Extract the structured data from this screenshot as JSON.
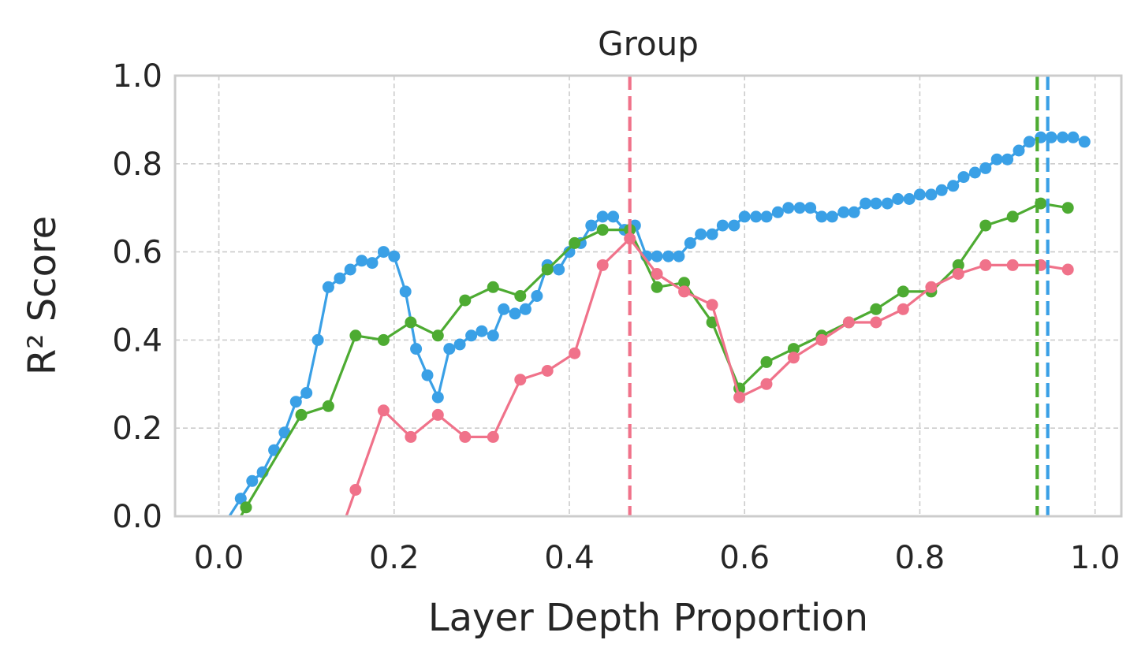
{
  "chart_data": {
    "type": "line",
    "title": "Group",
    "xlabel": "Layer Depth Proportion",
    "ylabel": "R² Score",
    "xlim": [
      -0.05,
      1.03
    ],
    "ylim": [
      0.0,
      1.0
    ],
    "xticks": [
      0.0,
      0.2,
      0.4,
      0.6,
      0.8,
      1.0
    ],
    "xtick_labels": [
      "0.0",
      "0.2",
      "0.4",
      "0.6",
      "0.8",
      "1.0"
    ],
    "yticks": [
      0.0,
      0.2,
      0.4,
      0.6,
      0.8,
      1.0
    ],
    "ytick_labels": [
      "0.0",
      "0.2",
      "0.4",
      "0.6",
      "0.8",
      "1.0"
    ],
    "grid": true,
    "legend": "none",
    "series": [
      {
        "color": "#3aa0e6",
        "x": [
          0.025,
          0.038,
          0.05,
          0.063,
          0.075,
          0.088,
          0.1,
          0.113,
          0.125,
          0.138,
          0.15,
          0.163,
          0.175,
          0.188,
          0.2,
          0.213,
          0.225,
          0.238,
          0.25,
          0.263,
          0.275,
          0.288,
          0.3,
          0.313,
          0.325,
          0.338,
          0.35,
          0.363,
          0.375,
          0.388,
          0.4,
          0.413,
          0.425,
          0.438,
          0.45,
          0.463,
          0.475,
          0.488,
          0.5,
          0.513,
          0.525,
          0.538,
          0.55,
          0.563,
          0.575,
          0.588,
          0.6,
          0.613,
          0.625,
          0.638,
          0.65,
          0.663,
          0.675,
          0.688,
          0.7,
          0.713,
          0.725,
          0.738,
          0.75,
          0.763,
          0.775,
          0.788,
          0.8,
          0.813,
          0.825,
          0.838,
          0.85,
          0.863,
          0.875,
          0.888,
          0.9,
          0.913,
          0.925,
          0.938,
          0.95,
          0.963,
          0.975,
          0.988
        ],
        "y": [
          0.04,
          0.08,
          0.1,
          0.15,
          0.19,
          0.26,
          0.28,
          0.4,
          0.52,
          0.54,
          0.56,
          0.58,
          0.575,
          0.6,
          0.59,
          0.51,
          0.38,
          0.32,
          0.27,
          0.38,
          0.39,
          0.41,
          0.42,
          0.41,
          0.47,
          0.46,
          0.47,
          0.5,
          0.57,
          0.56,
          0.6,
          0.62,
          0.66,
          0.68,
          0.68,
          0.65,
          0.66,
          0.59,
          0.59,
          0.59,
          0.59,
          0.62,
          0.64,
          0.64,
          0.66,
          0.66,
          0.68,
          0.68,
          0.68,
          0.69,
          0.7,
          0.7,
          0.7,
          0.68,
          0.68,
          0.69,
          0.69,
          0.71,
          0.71,
          0.71,
          0.72,
          0.72,
          0.73,
          0.73,
          0.74,
          0.75,
          0.77,
          0.78,
          0.79,
          0.81,
          0.81,
          0.83,
          0.85,
          0.86,
          0.86,
          0.86,
          0.86,
          0.85
        ],
        "vline_x": 0.946
      },
      {
        "color": "#4dab32",
        "x": [
          0.031,
          0.094,
          0.125,
          0.156,
          0.188,
          0.219,
          0.25,
          0.281,
          0.313,
          0.344,
          0.375,
          0.406,
          0.438,
          0.469,
          0.5,
          0.531,
          0.563,
          0.594,
          0.625,
          0.656,
          0.688,
          0.719,
          0.75,
          0.781,
          0.813,
          0.844,
          0.875,
          0.906,
          0.938,
          0.969
        ],
        "y": [
          0.02,
          0.23,
          0.25,
          0.41,
          0.4,
          0.44,
          0.41,
          0.49,
          0.52,
          0.5,
          0.56,
          0.62,
          0.65,
          0.65,
          0.52,
          0.53,
          0.44,
          0.29,
          0.35,
          0.38,
          0.41,
          0.44,
          0.47,
          0.51,
          0.51,
          0.57,
          0.66,
          0.68,
          0.71,
          0.7
        ],
        "vline_x": 0.934
      },
      {
        "color": "#f0728a",
        "x": [
          0.156,
          0.188,
          0.219,
          0.25,
          0.281,
          0.313,
          0.344,
          0.375,
          0.406,
          0.438,
          0.469,
          0.5,
          0.531,
          0.563,
          0.594,
          0.625,
          0.656,
          0.688,
          0.719,
          0.75,
          0.781,
          0.813,
          0.844,
          0.875,
          0.906,
          0.938,
          0.969
        ],
        "y": [
          0.06,
          0.24,
          0.18,
          0.23,
          0.18,
          0.18,
          0.31,
          0.33,
          0.37,
          0.57,
          0.63,
          0.55,
          0.51,
          0.48,
          0.27,
          0.3,
          0.36,
          0.4,
          0.44,
          0.44,
          0.47,
          0.52,
          0.55,
          0.57,
          0.57,
          0.57,
          0.56
        ],
        "vline_x": 0.469
      }
    ]
  }
}
